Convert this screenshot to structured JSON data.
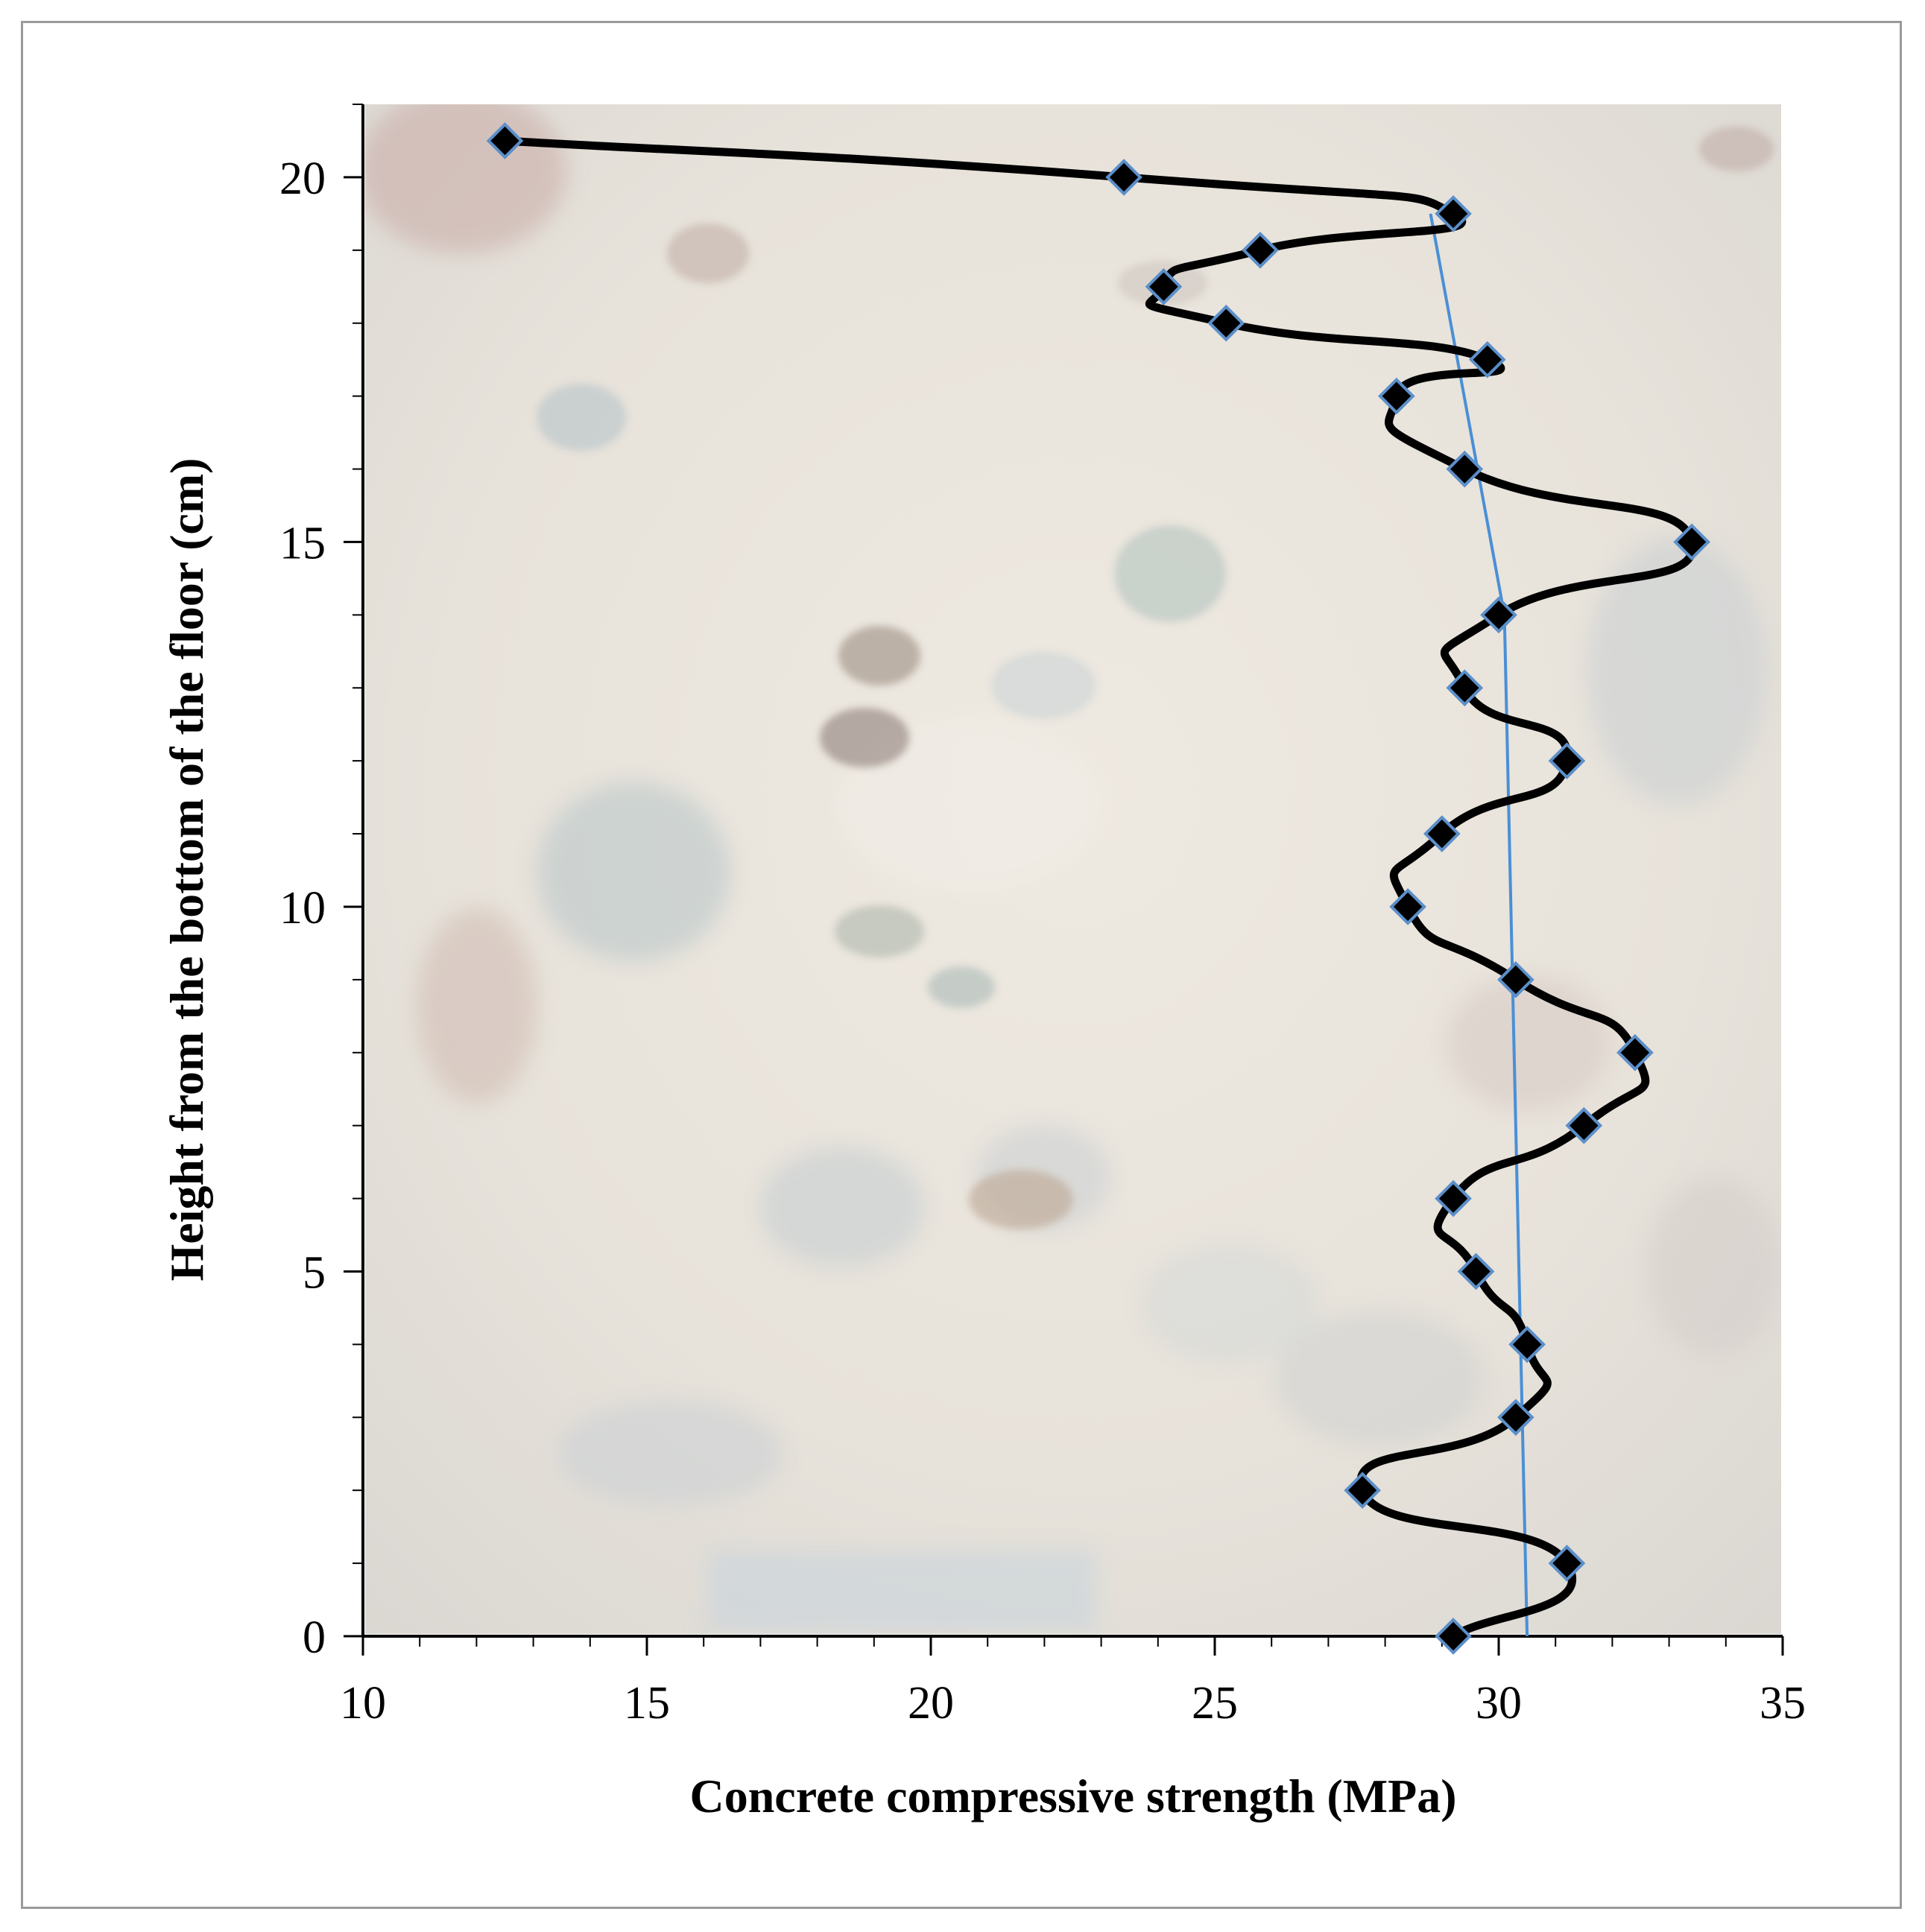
{
  "chart_data": {
    "type": "line",
    "title": "",
    "xlabel": "Concrete compressive strength (MPa)",
    "ylabel": "Height from the bottom of the floor (cm)",
    "xlim": [
      10,
      35
    ],
    "ylim": [
      0,
      21
    ],
    "x_major_ticks": [
      10,
      15,
      20,
      25,
      30,
      35
    ],
    "y_major_ticks": [
      0,
      5,
      10,
      15,
      20
    ],
    "x_tick_labels": [
      "10",
      "15",
      "20",
      "25",
      "30",
      "35"
    ],
    "y_tick_labels": [
      "0",
      "5",
      "10",
      "15",
      "20"
    ],
    "x_minor_step": 1,
    "y_minor_step": 1,
    "grid": false,
    "legend": "none",
    "background": "concrete surface photograph",
    "series": [
      {
        "style": "smoothed black line with black diamond markers",
        "color": "#000000",
        "points": [
          {
            "strength": 29.2,
            "height": 0
          },
          {
            "strength": 31.2,
            "height": 1
          },
          {
            "strength": 27.6,
            "height": 2
          },
          {
            "strength": 30.3,
            "height": 3
          },
          {
            "strength": 30.5,
            "height": 4
          },
          {
            "strength": 29.6,
            "height": 5
          },
          {
            "strength": 29.2,
            "height": 6
          },
          {
            "strength": 31.5,
            "height": 7
          },
          {
            "strength": 32.4,
            "height": 8
          },
          {
            "strength": 30.3,
            "height": 9
          },
          {
            "strength": 28.4,
            "height": 10
          },
          {
            "strength": 29.0,
            "height": 11
          },
          {
            "strength": 31.2,
            "height": 12
          },
          {
            "strength": 29.4,
            "height": 13
          },
          {
            "strength": 30.0,
            "height": 14
          },
          {
            "strength": 33.4,
            "height": 15
          },
          {
            "strength": 29.4,
            "height": 16
          },
          {
            "strength": 28.2,
            "height": 17
          },
          {
            "strength": 29.8,
            "height": 17.5
          },
          {
            "strength": 25.2,
            "height": 18
          },
          {
            "strength": 24.1,
            "height": 18.5
          },
          {
            "strength": 25.8,
            "height": 19
          },
          {
            "strength": 29.2,
            "height": 19.5
          },
          {
            "strength": 23.4,
            "height": 20
          },
          {
            "strength": 12.5,
            "height": 20.5
          }
        ]
      },
      {
        "style": "thin blue trend line",
        "color": "#4a8fd6",
        "points": [
          {
            "strength": 30.5,
            "height": 0
          },
          {
            "strength": 30.1,
            "height": 14
          },
          {
            "strength": 28.8,
            "height": 19.5
          }
        ]
      }
    ],
    "colors": {
      "marker_fill": "#000000",
      "marker_edge": "#5b8fc9",
      "axis": "#000000",
      "frame_border": "#9a9a9a"
    }
  }
}
